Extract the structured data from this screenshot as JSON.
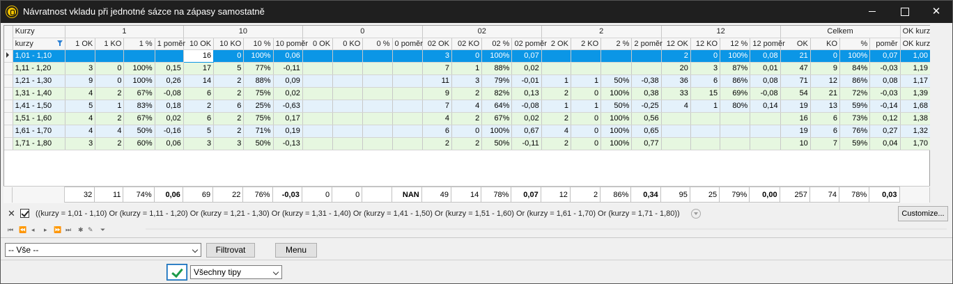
{
  "window": {
    "title": "Návratnost vkladu při jednotné sázce na zápasy samostatně"
  },
  "grid": {
    "bands": [
      "Kurzy",
      "1",
      "10",
      "0",
      "02",
      "2",
      "12",
      "Celkem",
      "OK kurz"
    ],
    "columns": [
      "kurzy",
      "1 OK",
      "1 KO",
      "1 %",
      "1 poměr",
      "10 OK",
      "10 KO",
      "10 %",
      "10 poměr",
      "0 OK",
      "0 KO",
      "0 %",
      "0 poměr",
      "02 OK",
      "02 KO",
      "02 %",
      "02 poměr",
      "2 OK",
      "2 KO",
      "2 %",
      "2 poměr",
      "12 OK",
      "12 KO",
      "12 %",
      "12 poměr",
      "OK",
      "KO",
      "%",
      "poměr",
      "OK kurz"
    ],
    "rows": [
      [
        "1,01 - 1,10",
        "",
        "",
        "",
        "",
        "16",
        "0",
        "100%",
        "0,06",
        "",
        "",
        "",
        "",
        "3",
        "0",
        "100%",
        "0,07",
        "",
        "",
        "",
        "",
        "2",
        "0",
        "100%",
        "0,08",
        "21",
        "0",
        "100%",
        "0,07",
        "1,00"
      ],
      [
        "1,11 - 1,20",
        "3",
        "0",
        "100%",
        "0,15",
        "17",
        "5",
        "77%",
        "-0,11",
        "",
        "",
        "",
        "",
        "7",
        "1",
        "88%",
        "0,02",
        "",
        "",
        "",
        "",
        "20",
        "3",
        "87%",
        "0,01",
        "47",
        "9",
        "84%",
        "-0,03",
        "1,19"
      ],
      [
        "1,21 - 1,30",
        "9",
        "0",
        "100%",
        "0,26",
        "14",
        "2",
        "88%",
        "0,09",
        "",
        "",
        "",
        "",
        "11",
        "3",
        "79%",
        "-0,01",
        "1",
        "1",
        "50%",
        "-0,38",
        "36",
        "6",
        "86%",
        "0,08",
        "71",
        "12",
        "86%",
        "0,08",
        "1,17"
      ],
      [
        "1,31 - 1,40",
        "4",
        "2",
        "67%",
        "-0,08",
        "6",
        "2",
        "75%",
        "0,02",
        "",
        "",
        "",
        "",
        "9",
        "2",
        "82%",
        "0,13",
        "2",
        "0",
        "100%",
        "0,38",
        "33",
        "15",
        "69%",
        "-0,08",
        "54",
        "21",
        "72%",
        "-0,03",
        "1,39"
      ],
      [
        "1,41 - 1,50",
        "5",
        "1",
        "83%",
        "0,18",
        "2",
        "6",
        "25%",
        "-0,63",
        "",
        "",
        "",
        "",
        "7",
        "4",
        "64%",
        "-0,08",
        "1",
        "1",
        "50%",
        "-0,25",
        "4",
        "1",
        "80%",
        "0,14",
        "19",
        "13",
        "59%",
        "-0,14",
        "1,68"
      ],
      [
        "1,51 - 1,60",
        "4",
        "2",
        "67%",
        "0,02",
        "6",
        "2",
        "75%",
        "0,17",
        "",
        "",
        "",
        "",
        "4",
        "2",
        "67%",
        "0,02",
        "2",
        "0",
        "100%",
        "0,56",
        "",
        "",
        "",
        "",
        "16",
        "6",
        "73%",
        "0,12",
        "1,38"
      ],
      [
        "1,61 - 1,70",
        "4",
        "4",
        "50%",
        "-0,16",
        "5",
        "2",
        "71%",
        "0,19",
        "",
        "",
        "",
        "",
        "6",
        "0",
        "100%",
        "0,67",
        "4",
        "0",
        "100%",
        "0,65",
        "",
        "",
        "",
        "",
        "19",
        "6",
        "76%",
        "0,27",
        "1,32"
      ],
      [
        "1,71 - 1,80",
        "3",
        "2",
        "60%",
        "0,06",
        "3",
        "3",
        "50%",
        "-0,13",
        "",
        "",
        "",
        "",
        "2",
        "2",
        "50%",
        "-0,11",
        "2",
        "0",
        "100%",
        "0,77",
        "",
        "",
        "",
        "",
        "10",
        "7",
        "59%",
        "0,04",
        "1,70"
      ]
    ],
    "totals": [
      "",
      "32",
      "11",
      "74%",
      "0,06",
      "69",
      "22",
      "76%",
      "-0,03",
      "0",
      "0",
      "",
      "NAN",
      "49",
      "14",
      "78%",
      "0,07",
      "12",
      "2",
      "86%",
      "0,34",
      "95",
      "25",
      "79%",
      "0,00",
      "257",
      "74",
      "78%",
      "0,03",
      ""
    ]
  },
  "filter": {
    "expression": "((kurzy = 1,01 - 1,10) Or (kurzy = 1,11 - 1,20) Or (kurzy = 1,21 - 1,30) Or (kurzy = 1,31 - 1,40) Or (kurzy = 1,41 - 1,50) Or (kurzy = 1,51 - 1,60) Or (kurzy = 1,61 - 1,70) Or (kurzy = 1,71 - 1,80))",
    "customize_label": "Customize..."
  },
  "controls": {
    "select_value": "-- Vše --",
    "filter_button": "Filtrovat",
    "menu_button": "Menu",
    "tips_select": "Všechny tipy"
  },
  "colors": {
    "selected": "#0b96e6",
    "row_green": "#e6f7e0",
    "row_blue": "#e4f1fb",
    "titlebar": "#1f1f1f"
  }
}
